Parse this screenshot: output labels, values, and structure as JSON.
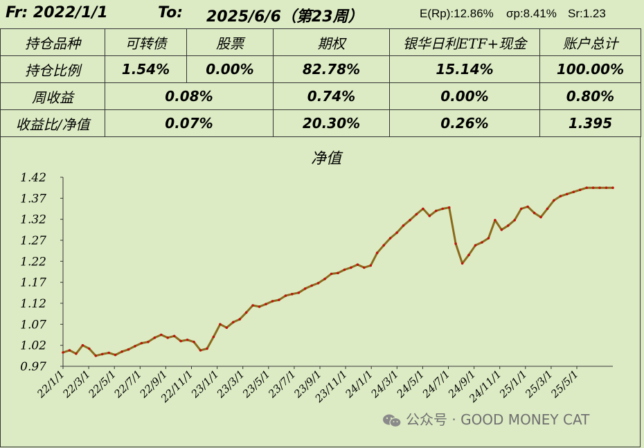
{
  "header": {
    "from_label": "Fr: 2022/1/1",
    "to_label": "To:",
    "to_date": "2025/6/6（第23周）",
    "e_rp": "E(Rp):12.86%",
    "sigma_p": "σp:8.41%",
    "sr": "Sr:1.23"
  },
  "table": {
    "headers": [
      "持仓品种",
      "可转债",
      "股票",
      "期权",
      "银华日利ETF+现金",
      "账户总计"
    ],
    "position_label": "持仓比例",
    "position_values": [
      "1.54%",
      "0.00%",
      "82.78%",
      "15.14%",
      "100.00%"
    ],
    "weekly_label": "周收益",
    "weekly_values": [
      "0.08%",
      "0.74%",
      "0.00%",
      "0.80%"
    ],
    "ratio_label": "收益比/净值",
    "ratio_values": [
      "0.07%",
      "20.30%",
      "0.26%",
      "1.395"
    ]
  },
  "watermark": "公众号 · GOOD MONEY CAT",
  "chart_data": {
    "type": "line",
    "title": "净值",
    "xlabel": "",
    "ylabel": "",
    "ylim": [
      0.97,
      1.42
    ],
    "y_ticks": [
      "0.97",
      "1.02",
      "1.07",
      "1.12",
      "1.17",
      "1.22",
      "1.27",
      "1.32",
      "1.37",
      "1.42"
    ],
    "x_ticks": [
      "22/1/1",
      "22/3/1",
      "22/5/1",
      "22/7/1",
      "22/9/1",
      "22/11/1",
      "23/1/1",
      "23/3/1",
      "23/5/1",
      "23/7/1",
      "23/9/1",
      "23/11/1",
      "24/1/1",
      "24/3/1",
      "24/5/1",
      "24/7/1",
      "24/9/1",
      "24/11/1",
      "25/1/1",
      "25/3/1",
      "25/5/1"
    ],
    "grid": false,
    "line_color": "#8b6a1c",
    "marker_color": "#c0140c",
    "series": [
      {
        "x": [
          0,
          0.5,
          1,
          1.5,
          2,
          2.5,
          3,
          3.5,
          4,
          4.5,
          5,
          5.5,
          6,
          6.5,
          7,
          7.5,
          8,
          8.5,
          9,
          9.5,
          10,
          10.5,
          11,
          11.5,
          12,
          12.5,
          13,
          13.5,
          14,
          14.5,
          15,
          15.5,
          16,
          16.5,
          17,
          17.5,
          18,
          18.5,
          19,
          19.5,
          20,
          20.5,
          21,
          21.5,
          22,
          22.5,
          23,
          23.5,
          24,
          24.5,
          25,
          25.5,
          26,
          26.5,
          27,
          27.5,
          28,
          28.5,
          29,
          29.5,
          30,
          30.5,
          31,
          31.5,
          32,
          32.5,
          33,
          33.5,
          34,
          34.5,
          35,
          35.5,
          36,
          36.5,
          37,
          37.5,
          38,
          38.5,
          39,
          39.5,
          40,
          40.5,
          41,
          41.5,
          42
        ],
        "values": [
          1.003,
          1.008,
          1.0,
          1.02,
          1.012,
          0.995,
          0.999,
          1.002,
          0.997,
          1.005,
          1.01,
          1.018,
          1.025,
          1.028,
          1.038,
          1.045,
          1.038,
          1.042,
          1.03,
          1.033,
          1.028,
          1.008,
          1.012,
          1.04,
          1.07,
          1.062,
          1.075,
          1.082,
          1.098,
          1.115,
          1.112,
          1.118,
          1.125,
          1.128,
          1.138,
          1.142,
          1.145,
          1.155,
          1.162,
          1.168,
          1.178,
          1.19,
          1.192,
          1.2,
          1.205,
          1.212,
          1.205,
          1.21,
          1.24,
          1.258,
          1.275,
          1.288,
          1.305,
          1.318,
          1.332,
          1.345,
          1.328,
          1.34,
          1.345,
          1.348,
          1.262,
          1.215,
          1.235,
          1.258,
          1.265,
          1.275,
          1.318,
          1.295,
          1.305,
          1.318,
          1.345,
          1.35,
          1.335,
          1.325,
          1.345,
          1.365,
          1.375,
          1.38,
          1.385,
          1.39,
          1.395,
          1.395,
          1.395,
          1.395,
          1.395
        ],
        "detail_note": ""
      }
    ]
  }
}
